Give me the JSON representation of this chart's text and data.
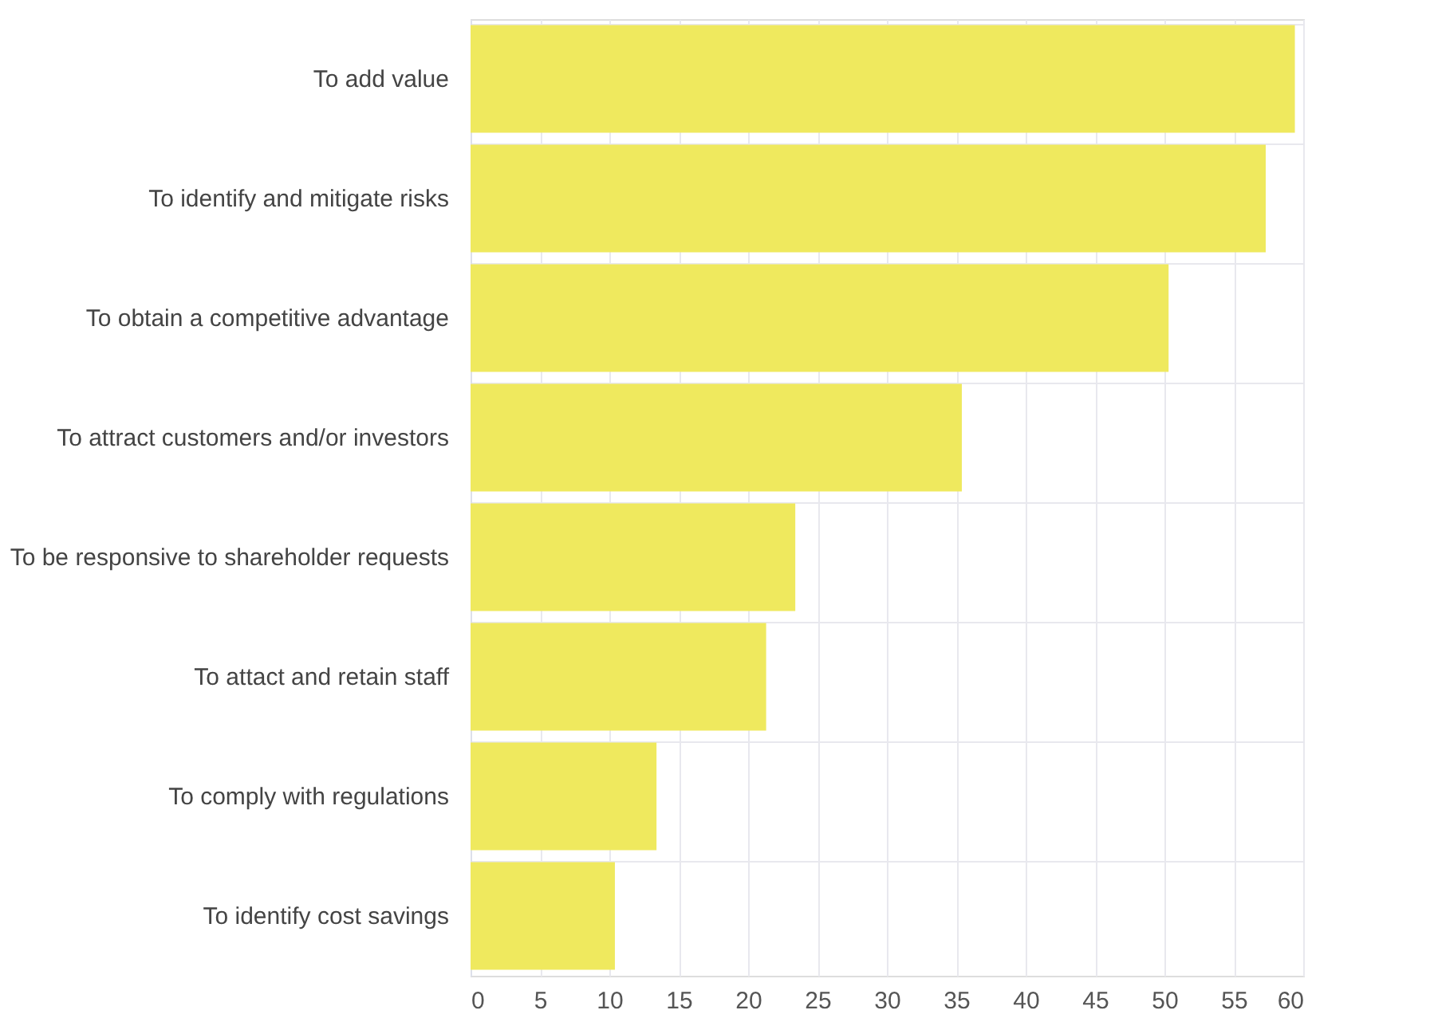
{
  "chart_data": {
    "type": "bar",
    "orientation": "horizontal",
    "categories": [
      "To add value",
      "To identify and mitigate risks",
      "To obtain a competitive advantage",
      "To attract customers and/or investors",
      "To be responsive to shareholder requests",
      "To attact and retain staff",
      "To comply with regulations",
      "To identify cost savings"
    ],
    "values": [
      59.4,
      57.3,
      50.3,
      35.4,
      23.4,
      21.3,
      13.4,
      10.4
    ],
    "color": "#efe95e",
    "xlim": [
      0,
      60
    ],
    "xticks": [
      0,
      5,
      10,
      15,
      20,
      25,
      30,
      35,
      40,
      45,
      50,
      55,
      60
    ],
    "grid": true
  }
}
